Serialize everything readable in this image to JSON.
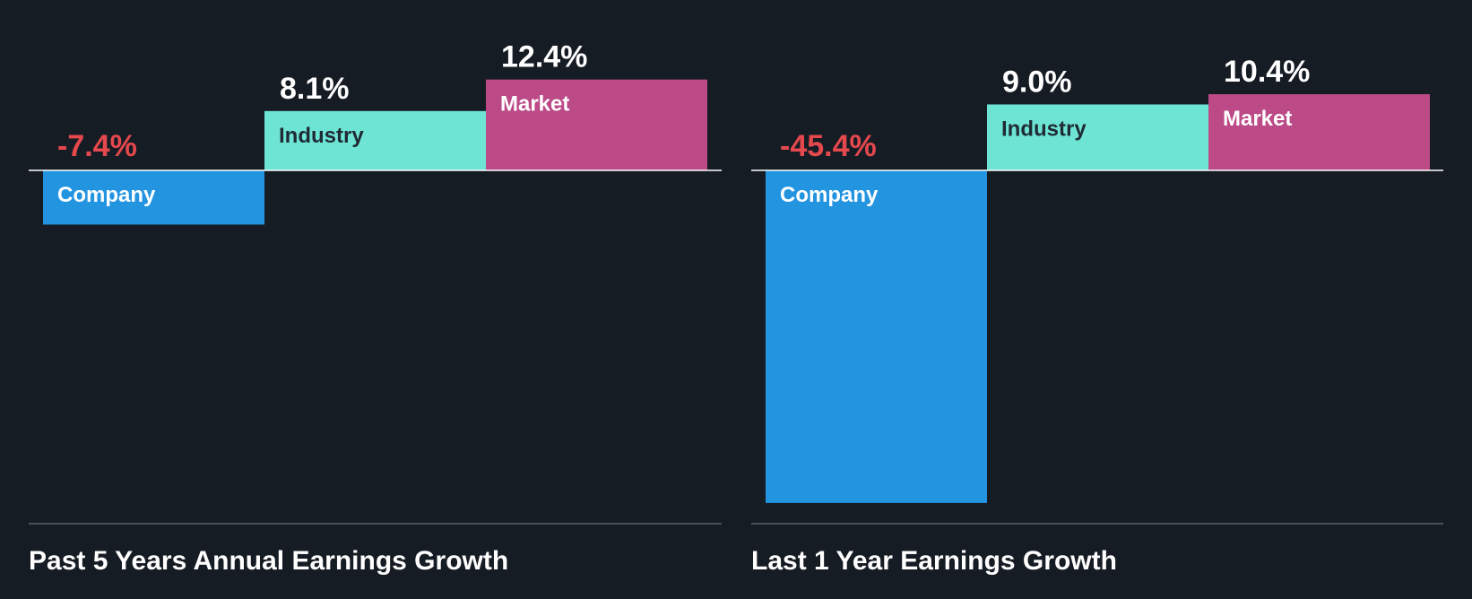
{
  "colors": {
    "background": "#161c24",
    "zero_line": "#ffffff",
    "baseline": "#4a4f58",
    "text": "#ffffff",
    "negative_text": "#e5484d",
    "dark_label": "#1f2a35"
  },
  "chart_data": [
    {
      "type": "bar",
      "title": "Past 5 Years Annual Earnings Growth",
      "categories": [
        "Company",
        "Industry",
        "Market"
      ],
      "values": [
        -7.4,
        8.1,
        12.4
      ],
      "value_labels": [
        "-7.4%",
        "8.1%",
        "12.4%"
      ],
      "bar_colors": [
        "#2394e0",
        "#6ee5d4",
        "#bb4a87"
      ],
      "label_colors": [
        "#ffffff",
        "#1f2a35",
        "#ffffff"
      ],
      "value_label_colors": [
        "#e5484d",
        "#ffffff",
        "#ffffff"
      ],
      "ylim": [
        -45.4,
        12.4
      ],
      "unit": "%",
      "grid": false,
      "legend": "none"
    },
    {
      "type": "bar",
      "title": "Last 1 Year Earnings Growth",
      "categories": [
        "Company",
        "Industry",
        "Market"
      ],
      "values": [
        -45.4,
        9.0,
        10.4
      ],
      "value_labels": [
        "-45.4%",
        "9.0%",
        "10.4%"
      ],
      "bar_colors": [
        "#2394e0",
        "#6ee5d4",
        "#bb4a87"
      ],
      "label_colors": [
        "#ffffff",
        "#1f2a35",
        "#ffffff"
      ],
      "value_label_colors": [
        "#e5484d",
        "#ffffff",
        "#ffffff"
      ],
      "ylim": [
        -45.4,
        12.4
      ],
      "unit": "%",
      "grid": false,
      "legend": "none"
    }
  ]
}
